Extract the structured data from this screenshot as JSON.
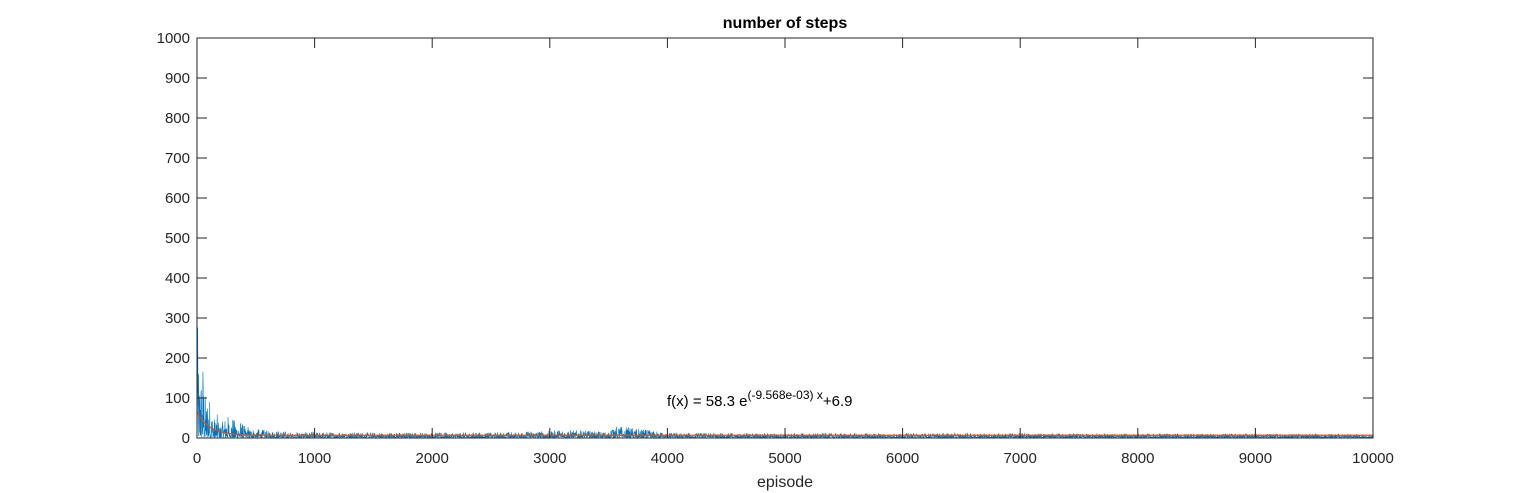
{
  "chart_data": {
    "type": "line",
    "title": "number of steps",
    "xlabel": "episode",
    "ylabel": "",
    "xlim": [
      0,
      10000
    ],
    "ylim": [
      0,
      1000
    ],
    "xticks": [
      0,
      1000,
      2000,
      3000,
      4000,
      5000,
      6000,
      7000,
      8000,
      9000,
      10000
    ],
    "yticks": [
      0,
      100,
      200,
      300,
      400,
      500,
      600,
      700,
      800,
      900,
      1000
    ],
    "grid": false,
    "series": [
      {
        "color": "#0072bd",
        "style": "noisy",
        "x": [
          0,
          10,
          20,
          30,
          40,
          50,
          60,
          75,
          90,
          105,
          120,
          135,
          150,
          175,
          200,
          250,
          300,
          350,
          400,
          500,
          600,
          700,
          800,
          1000,
          1500,
          2000,
          2500,
          3000,
          3100,
          3500,
          3530,
          4000,
          5000,
          6000,
          7000,
          8000,
          9000,
          10000
        ],
        "values": [
          285,
          270,
          120,
          260,
          95,
          200,
          150,
          80,
          110,
          95,
          70,
          55,
          45,
          60,
          35,
          55,
          45,
          40,
          30,
          22,
          18,
          18,
          15,
          15,
          14,
          14,
          14,
          18,
          22,
          15,
          33,
          13,
          12,
          12,
          12,
          11,
          11,
          10
        ]
      },
      {
        "color": "#d95319",
        "x_range": [
          0,
          10000
        ],
        "a": 58.3,
        "b": -0.009568,
        "c": 6.9
      }
    ],
    "annotations": [
      {
        "x": 4000,
        "y": 90,
        "prefix": "f(x) = 58.3 e",
        "superscript": "(-9.568e-03) x",
        "suffix": "+6.9"
      }
    ]
  }
}
